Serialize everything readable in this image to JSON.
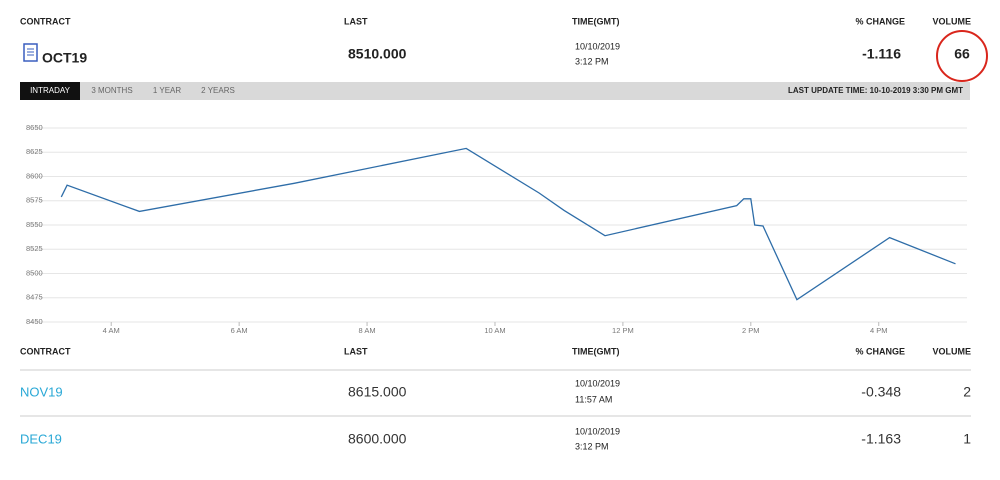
{
  "header": {
    "contract": "CONTRACT",
    "last": "LAST",
    "time": "TIME(GMT)",
    "change": "% CHANGE",
    "volume": "VOLUME"
  },
  "current": {
    "contract": "OCT19",
    "last": "8510.000",
    "date": "10/10/2019",
    "time": "3:12 PM",
    "change": "-1.116",
    "volume": "66"
  },
  "tabs": [
    "INTRADAY",
    "3 MONTHS",
    "1 YEAR",
    "2 YEARS"
  ],
  "last_update": "LAST UPDATE TIME: 10-10-2019 3:30 PM GMT",
  "chart_data": {
    "type": "line",
    "color": "#2e6da8",
    "grid": true,
    "x": [
      3.22,
      3.31,
      4.44,
      6.86,
      9.55,
      10.69,
      11.08,
      11.72,
      13.78,
      13.89,
      14.0,
      14.06,
      14.19,
      14.72,
      16.17,
      17.2
    ],
    "values": [
      8579,
      8591,
      8564,
      8593,
      8629,
      8583,
      8565,
      8539,
      8570,
      8577,
      8577,
      8550,
      8549,
      8473,
      8537,
      8510
    ],
    "xlim": [
      2.73,
      17.38
    ],
    "xticks": [
      {
        "value": 4,
        "label": "4 AM"
      },
      {
        "value": 6,
        "label": "6 AM"
      },
      {
        "value": 8,
        "label": "8 AM"
      },
      {
        "value": 10,
        "label": "10 AM"
      },
      {
        "value": 12,
        "label": "12 PM"
      },
      {
        "value": 14,
        "label": "2 PM"
      },
      {
        "value": 16,
        "label": "4 PM"
      }
    ],
    "ylim": [
      8450,
      8650
    ],
    "yticks": [
      8450,
      8475,
      8500,
      8525,
      8550,
      8575,
      8600,
      8625,
      8650
    ]
  },
  "table": {
    "header": {
      "contract": "CONTRACT",
      "last": "LAST",
      "time": "TIME(GMT)",
      "change": "% CHANGE",
      "volume": "VOLUME"
    },
    "rows": [
      {
        "contract": "NOV19",
        "last": "8615.000",
        "date": "10/10/2019",
        "time": "11:57 AM",
        "change": "-0.348",
        "volume": "2"
      },
      {
        "contract": "DEC19",
        "last": "8600.000",
        "date": "10/10/2019",
        "time": "3:12 PM",
        "change": "-1.163",
        "volume": "1"
      }
    ]
  }
}
